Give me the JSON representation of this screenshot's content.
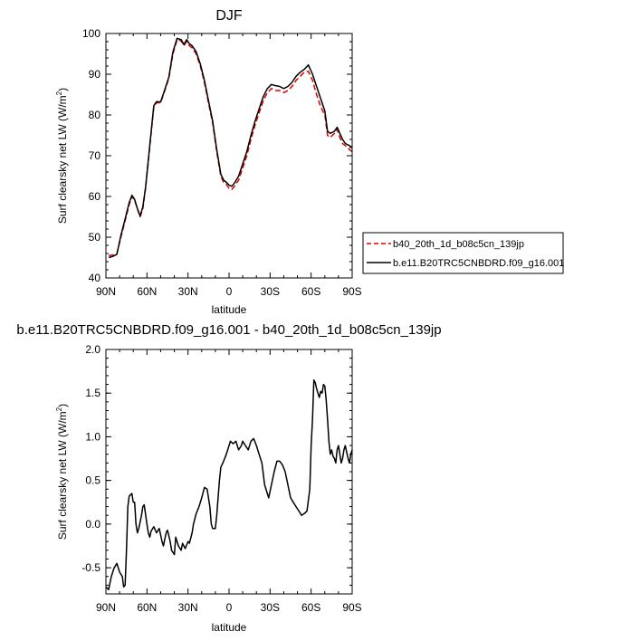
{
  "chart_data": [
    {
      "type": "line",
      "title": "DJF",
      "xlabel": "latitude",
      "ylabel": "Surf clearsky net LW (W/m²)",
      "ylabel_parts": {
        "main": "Surf clearsky net LW (W/m",
        "sup": "2",
        "end": ")"
      },
      "xlim": [
        -90,
        90
      ],
      "ylim": [
        40,
        100
      ],
      "xticks": [
        -90,
        -60,
        -30,
        0,
        30,
        60,
        90
      ],
      "xtick_labels": [
        "90N",
        "60N",
        "30N",
        "0",
        "30S",
        "60S",
        "90S"
      ],
      "yticks": [
        40,
        50,
        60,
        70,
        80,
        90,
        100
      ],
      "ytick_labels": [
        "40",
        "50",
        "60",
        "70",
        "80",
        "90",
        "100"
      ],
      "legend_position": "right, outside plot",
      "series": [
        {
          "name": "b40_20th_1d_b08c5cn_139jp",
          "color": "#dd0000",
          "style": "dashed",
          "x": [
            -88,
            -85,
            -82,
            -79,
            -76,
            -73,
            -71,
            -69,
            -67,
            -65,
            -63,
            -61,
            -58,
            -55,
            -53,
            -50,
            -47,
            -44,
            -41,
            -38,
            -35,
            -33,
            -31,
            -29,
            -27,
            -24,
            -21,
            -18,
            -15,
            -12,
            -9,
            -6,
            -4,
            -2,
            0,
            2,
            4,
            7,
            10,
            13,
            16,
            19,
            22,
            25,
            28,
            31,
            34,
            37,
            40,
            43,
            46,
            49,
            52,
            55,
            58,
            61,
            64,
            67,
            70,
            72,
            74,
            77,
            79,
            81,
            83,
            85,
            88,
            90
          ],
          "y": [
            45.5,
            45.6,
            46.0,
            50.0,
            54.0,
            58.0,
            60.0,
            59.0,
            57.0,
            55.0,
            57.0,
            62.0,
            72.0,
            82.0,
            83.0,
            83.0,
            86.0,
            89.0,
            95.0,
            98.5,
            98.2,
            97.0,
            98.0,
            97.0,
            96.5,
            95.0,
            92.0,
            88.0,
            83.0,
            78.0,
            71.0,
            65.0,
            63.5,
            63.0,
            62.0,
            61.7,
            62.5,
            64.0,
            67.0,
            70.0,
            74.0,
            77.5,
            80.5,
            83.5,
            85.5,
            86.5,
            86.0,
            86.0,
            85.5,
            86.0,
            87.0,
            88.5,
            89.5,
            90.5,
            90.7,
            88.5,
            85.0,
            82.0,
            80.0,
            75.0,
            74.5,
            75.5,
            76.5,
            74.5,
            73.0,
            72.5,
            71.5,
            71.0
          ]
        },
        {
          "name": "b.e11.B20TRC5CNBDRD.f09_g16.001",
          "color": "#000000",
          "style": "solid",
          "x": [
            -88,
            -85,
            -82,
            -79,
            -76,
            -73,
            -71,
            -69,
            -67,
            -65,
            -63,
            -61,
            -58,
            -55,
            -53,
            -50,
            -47,
            -44,
            -41,
            -38,
            -35,
            -33,
            -31,
            -29,
            -27,
            -24,
            -21,
            -18,
            -15,
            -12,
            -9,
            -6,
            -4,
            -2,
            0,
            2,
            4,
            7,
            10,
            13,
            16,
            19,
            22,
            25,
            28,
            31,
            34,
            37,
            40,
            43,
            46,
            49,
            52,
            55,
            58,
            61,
            64,
            67,
            70,
            72,
            74,
            77,
            79,
            81,
            83,
            85,
            88,
            90
          ],
          "y": [
            45.0,
            45.3,
            45.8,
            50.5,
            54.5,
            58.5,
            60.3,
            59.3,
            57.0,
            55.2,
            57.5,
            62.3,
            72.5,
            82.3,
            83.3,
            83.2,
            86.2,
            89.3,
            95.5,
            98.8,
            98.5,
            97.3,
            98.5,
            97.5,
            97.0,
            95.5,
            92.5,
            88.5,
            83.5,
            78.5,
            71.5,
            65.5,
            64.0,
            63.5,
            62.8,
            62.5,
            63.3,
            65.0,
            68.0,
            71.0,
            75.0,
            78.5,
            81.5,
            84.5,
            86.5,
            87.5,
            87.2,
            87.0,
            86.5,
            87.0,
            88.0,
            89.5,
            90.5,
            91.2,
            92.3,
            90.0,
            87.0,
            84.0,
            81.0,
            76.0,
            75.5,
            76.0,
            77.0,
            75.5,
            74.0,
            73.0,
            72.5,
            72.0
          ]
        }
      ]
    },
    {
      "type": "line",
      "title": "b.e11.B20TRC5CNBDRD.f09_g16.001 - b40_20th_1d_b08c5cn_139jp",
      "xlabel": "latitude",
      "ylabel": "Surf clearsky net LW (W/m²)",
      "ylabel_parts": {
        "main": "Surf clearsky net LW (W/m",
        "sup": "2",
        "end": ")"
      },
      "xlim": [
        -90,
        90
      ],
      "ylim": [
        -0.8,
        2.0
      ],
      "xticks": [
        -90,
        -60,
        -30,
        0,
        30,
        60,
        90
      ],
      "xtick_labels": [
        "90N",
        "60N",
        "30N",
        "0",
        "30S",
        "60S",
        "90S"
      ],
      "yticks": [
        -0.5,
        0.0,
        0.5,
        1.0,
        1.5,
        2.0
      ],
      "ytick_labels": [
        "-0.5",
        "0.0",
        "0.5",
        "1.0",
        "1.5",
        "2.0"
      ],
      "series": [
        {
          "color": "#000000",
          "style": "solid",
          "x": [
            -90,
            -88,
            -86,
            -84,
            -82,
            -80,
            -78,
            -77,
            -76,
            -75,
            -74,
            -73,
            -71,
            -70,
            -69,
            -68,
            -67,
            -66,
            -64,
            -63,
            -62,
            -60,
            -59,
            -58,
            -57,
            -55,
            -53,
            -51,
            -49,
            -48,
            -46,
            -45,
            -43,
            -42,
            -40,
            -39,
            -37,
            -35,
            -34,
            -32,
            -30,
            -29,
            -27,
            -26,
            -24,
            -22,
            -20,
            -18,
            -16,
            -14,
            -13,
            -12,
            -10,
            -9,
            -8,
            -7,
            -6,
            -4,
            -2,
            0,
            1,
            3,
            5,
            7,
            9,
            10,
            12,
            14,
            16,
            18,
            20,
            22,
            24,
            26,
            28,
            29,
            31,
            33,
            35,
            37,
            39,
            41,
            43,
            45,
            47,
            49,
            51,
            53,
            55,
            57,
            59,
            60,
            61,
            62,
            63,
            64,
            65,
            66,
            67,
            68,
            69,
            70,
            71,
            72,
            73,
            74,
            75,
            76,
            77,
            78,
            79,
            80,
            81,
            82,
            83,
            84,
            85,
            86,
            87,
            88,
            89,
            90
          ],
          "y": [
            -0.72,
            -0.75,
            -0.6,
            -0.5,
            -0.45,
            -0.55,
            -0.6,
            -0.72,
            -0.7,
            -0.3,
            0.2,
            0.32,
            0.35,
            0.25,
            0.25,
            0.0,
            -0.1,
            -0.05,
            0.1,
            0.2,
            0.22,
            0.0,
            -0.1,
            -0.15,
            -0.08,
            -0.03,
            -0.1,
            -0.05,
            -0.2,
            -0.25,
            -0.1,
            -0.07,
            -0.2,
            -0.3,
            -0.35,
            -0.15,
            -0.25,
            -0.3,
            -0.22,
            -0.28,
            -0.2,
            -0.22,
            -0.1,
            0.0,
            0.12,
            0.2,
            0.3,
            0.42,
            0.4,
            0.2,
            0.0,
            -0.05,
            -0.05,
            0.1,
            0.3,
            0.5,
            0.65,
            0.72,
            0.8,
            0.9,
            0.95,
            0.92,
            0.95,
            0.85,
            0.9,
            0.95,
            0.9,
            0.85,
            0.95,
            0.98,
            0.9,
            0.8,
            0.7,
            0.45,
            0.35,
            0.3,
            0.45,
            0.6,
            0.72,
            0.72,
            0.68,
            0.6,
            0.45,
            0.3,
            0.25,
            0.2,
            0.15,
            0.1,
            0.12,
            0.15,
            0.4,
            0.9,
            1.2,
            1.65,
            1.62,
            1.55,
            1.5,
            1.45,
            1.52,
            1.5,
            1.6,
            1.58,
            1.42,
            1.2,
            0.95,
            0.8,
            0.85,
            0.78,
            0.75,
            0.7,
            0.85,
            0.9,
            0.8,
            0.7,
            0.75,
            0.85,
            0.9,
            0.82,
            0.75,
            0.7,
            0.8,
            0.85
          ]
        }
      ]
    }
  ]
}
